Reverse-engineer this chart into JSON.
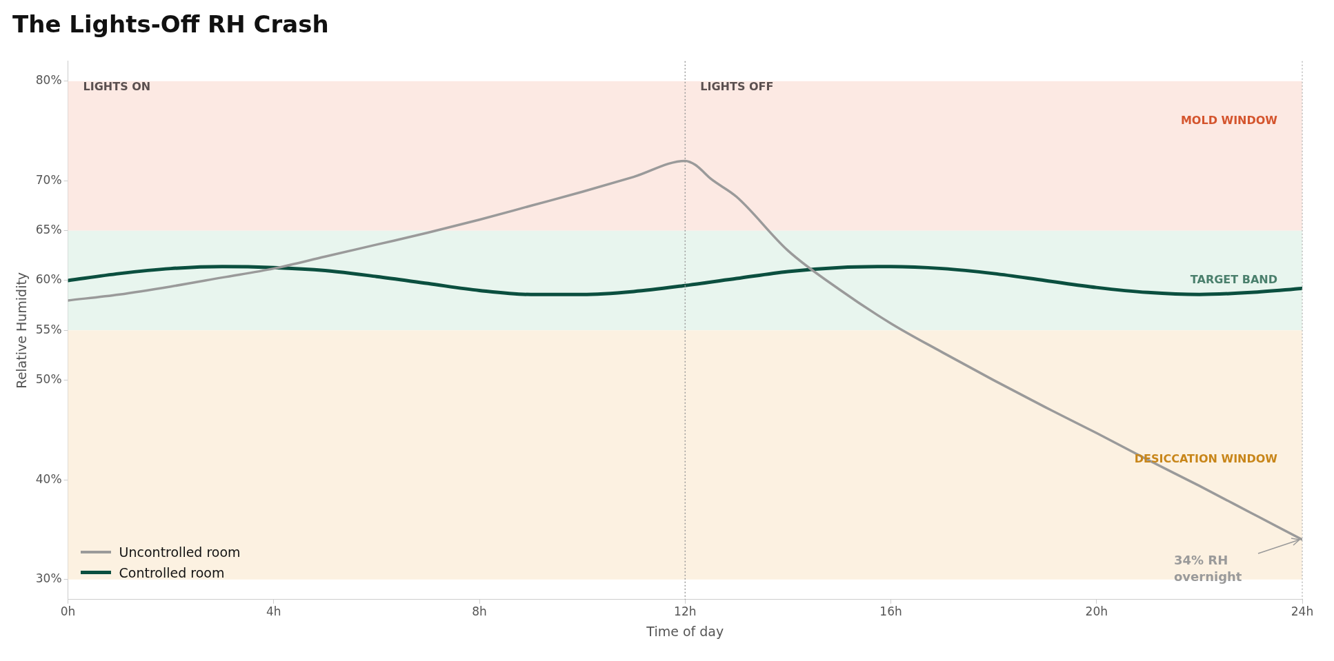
{
  "chart_data": {
    "type": "line",
    "title": "The Lights-Off RH Crash",
    "xlabel": "Time of day",
    "ylabel": "Relative Humidity",
    "xlim": [
      0,
      24
    ],
    "xticks": [
      {
        "value": 0,
        "label": "0h"
      },
      {
        "value": 4,
        "label": "4h"
      },
      {
        "value": 8,
        "label": "8h"
      },
      {
        "value": 12,
        "label": "12h"
      },
      {
        "value": 16,
        "label": "16h"
      },
      {
        "value": 20,
        "label": "20h"
      },
      {
        "value": 24,
        "label": "24h"
      }
    ],
    "ylim": [
      28,
      82
    ],
    "yticks": [
      {
        "value": 30,
        "label": "30%"
      },
      {
        "value": 40,
        "label": "40%"
      },
      {
        "value": 50,
        "label": "50%"
      },
      {
        "value": 55,
        "label": "55%"
      },
      {
        "value": 60,
        "label": "60%"
      },
      {
        "value": 65,
        "label": "65%"
      },
      {
        "value": 70,
        "label": "70%"
      },
      {
        "value": 80,
        "label": "80%"
      }
    ],
    "series": [
      {
        "name": "Uncontrolled room",
        "color": "#9a9a9a",
        "x": [
          0,
          1,
          2,
          3,
          4,
          5,
          6,
          7,
          8,
          9,
          10,
          11,
          12,
          12.2,
          12.5,
          13,
          14,
          15,
          16,
          17,
          18,
          19,
          20,
          21,
          22,
          23,
          24
        ],
        "values": [
          58.0,
          58.6,
          59.4,
          60.3,
          61.2,
          62.4,
          63.6,
          64.8,
          66.1,
          67.5,
          68.9,
          70.4,
          72.0,
          71.6,
          70.2,
          68.4,
          63.0,
          59.1,
          55.7,
          52.8,
          50.0,
          47.3,
          44.7,
          42.0,
          39.4,
          36.7,
          34.0
        ]
      },
      {
        "name": "Controlled room",
        "color": "#0b4f3f",
        "x": [
          0,
          1,
          2,
          3,
          4,
          5,
          6,
          7,
          8,
          9,
          10,
          11,
          12,
          13,
          14,
          15,
          16,
          17,
          18,
          19,
          20,
          21,
          22,
          23,
          24
        ],
        "values": [
          60.0,
          60.7,
          61.2,
          61.4,
          61.3,
          61.0,
          60.4,
          59.7,
          59.0,
          58.6,
          58.6,
          58.9,
          59.5,
          60.2,
          60.9,
          61.3,
          61.4,
          61.2,
          60.7,
          60.0,
          59.3,
          58.8,
          58.6,
          58.8,
          59.2
        ]
      }
    ],
    "bands": [
      {
        "axis": "y",
        "from": 65,
        "to": 80,
        "label": "MOLD WINDOW",
        "color": "#fce9e3"
      },
      {
        "axis": "y",
        "from": 55,
        "to": 65,
        "label": "TARGET BAND",
        "color": "#e8f5ee"
      },
      {
        "axis": "y",
        "from": 30,
        "to": 55,
        "label": "DESICCATION WINDOW",
        "color": "#fcf1e1"
      }
    ],
    "ref_lines": [
      {
        "axis": "x",
        "value": 12,
        "label": "LIGHTS OFF",
        "line_style": "dotted"
      }
    ],
    "annotations": [
      "LIGHTS ON",
      "34% RH\novernight"
    ],
    "legend": "bottom left",
    "grid": false,
    "marker": "none",
    "line_style": "solid"
  }
}
